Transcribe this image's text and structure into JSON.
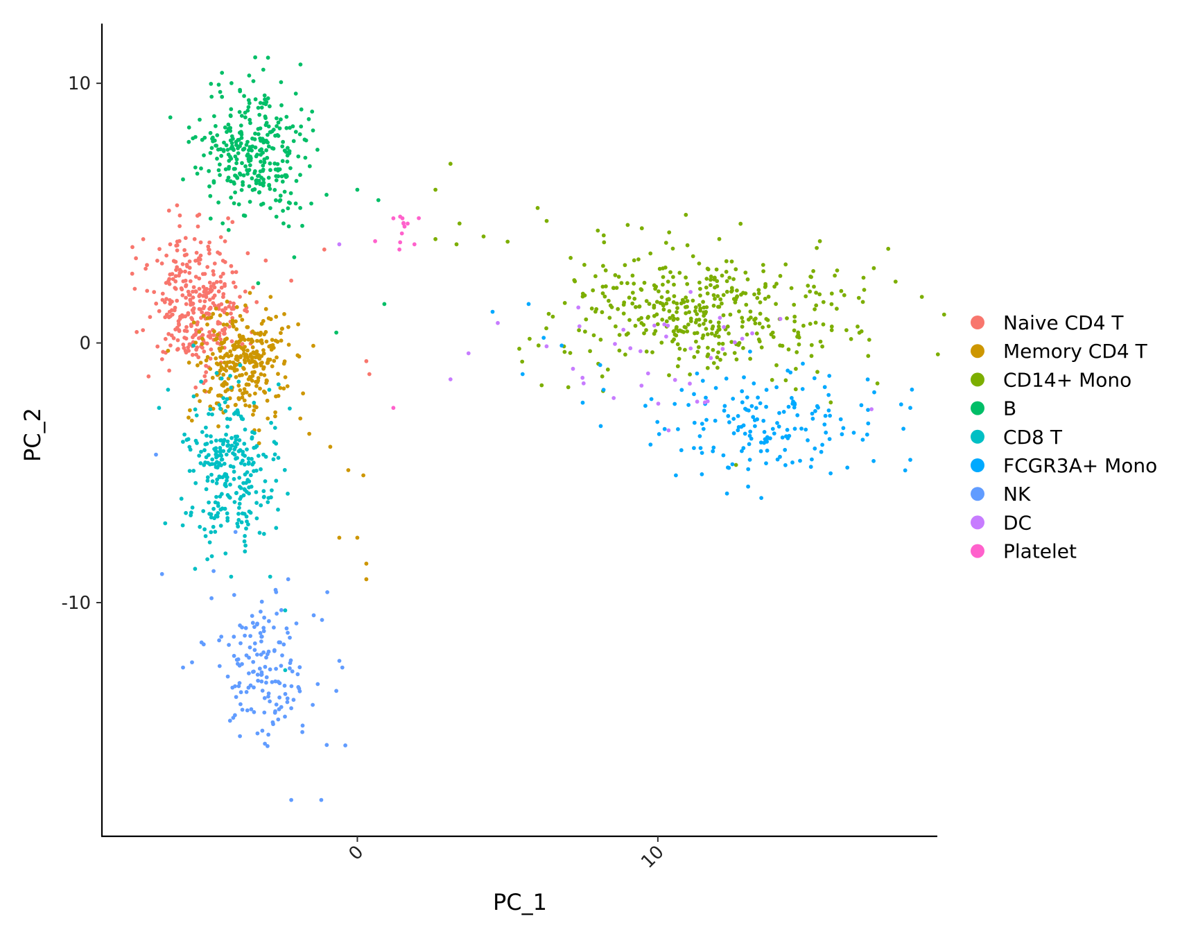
{
  "chart_data": {
    "type": "scatter",
    "title": "",
    "xlabel": "PC_1",
    "ylabel": "PC_2",
    "xlim": [
      -8.5,
      19.3
    ],
    "ylim": [
      -19,
      12.3
    ],
    "xticks": [
      {
        "value": 0,
        "label": "0"
      },
      {
        "value": 10,
        "label": "10"
      }
    ],
    "yticks": [
      {
        "value": 10,
        "label": "10"
      },
      {
        "value": 0,
        "label": "0"
      },
      {
        "value": -10,
        "label": "-10"
      }
    ],
    "grid": false,
    "legend_position": "right",
    "series": [
      {
        "name": "Naive CD4 T",
        "color": "#F8766D",
        "cluster": {
          "cx": -5.4,
          "cy": 1.5,
          "sx": 0.8,
          "sy": 1.3,
          "n": 330
        },
        "points": [
          [
            -6.0,
            5.3
          ],
          [
            -4.3,
            4.8
          ],
          [
            -7.0,
            3.0
          ],
          [
            -6.9,
            1.0
          ],
          [
            0.3,
            -0.7
          ],
          [
            0.4,
            -1.2
          ],
          [
            -2.2,
            2.4
          ],
          [
            -1.1,
            3.6
          ]
        ]
      },
      {
        "name": "Memory CD4 T",
        "color": "#CD9600",
        "cluster": {
          "cx": -3.8,
          "cy": -0.7,
          "sx": 0.8,
          "sy": 1.1,
          "n": 300
        },
        "points": [
          [
            -0.9,
            -4.0
          ],
          [
            -0.3,
            -4.9
          ],
          [
            0.2,
            -5.1
          ],
          [
            -0.6,
            -7.5
          ],
          [
            0.0,
            -7.5
          ],
          [
            0.3,
            -8.5
          ],
          [
            0.3,
            -9.1
          ],
          [
            -1.6,
            -3.5
          ],
          [
            -6.3,
            -0.3
          ]
        ]
      },
      {
        "name": "CD14+ Mono",
        "color": "#7CAE00",
        "cluster": {
          "cx": 11.5,
          "cy": 1.2,
          "sx": 2.5,
          "sy": 1.2,
          "n": 420
        },
        "points": [
          [
            2.6,
            5.9
          ],
          [
            3.1,
            6.9
          ],
          [
            3.4,
            4.6
          ],
          [
            2.6,
            4.0
          ],
          [
            3.3,
            3.8
          ],
          [
            6.0,
            5.2
          ],
          [
            6.3,
            4.7
          ],
          [
            5.0,
            3.9
          ],
          [
            4.2,
            4.1
          ],
          [
            12.6,
            -4.7
          ],
          [
            17.0,
            -0.5
          ]
        ]
      },
      {
        "name": "B",
        "color": "#00BE67",
        "cluster": {
          "cx": -3.4,
          "cy": 7.3,
          "sx": 0.9,
          "sy": 1.3,
          "n": 320
        },
        "points": [
          [
            -3.4,
            11.0
          ],
          [
            -3.6,
            10.3
          ],
          [
            -5.6,
            8.3
          ],
          [
            -5.8,
            6.3
          ],
          [
            0.0,
            5.9
          ],
          [
            0.7,
            5.5
          ],
          [
            0.9,
            1.5
          ],
          [
            -0.7,
            0.4
          ],
          [
            -2.1,
            3.3
          ],
          [
            -3.3,
            2.3
          ],
          [
            -1.9,
            5.2
          ]
        ]
      },
      {
        "name": "CD8 T",
        "color": "#00BFC4",
        "cluster": {
          "cx": -4.2,
          "cy": -5.0,
          "sx": 0.8,
          "sy": 1.5,
          "n": 280
        },
        "points": [
          [
            -6.6,
            -2.5
          ],
          [
            -6.3,
            -1.8
          ],
          [
            -2.4,
            -10.3
          ],
          [
            -2.4,
            -12.6
          ],
          [
            -4.2,
            -9.0
          ],
          [
            -5.4,
            -8.7
          ],
          [
            -2.9,
            -9.0
          ]
        ]
      },
      {
        "name": "FCGR3A+ Mono",
        "color": "#00A9FF",
        "cluster": {
          "cx": 13.5,
          "cy": -3.1,
          "sx": 2.0,
          "sy": 1.0,
          "n": 160
        },
        "points": [
          [
            4.5,
            1.2
          ],
          [
            5.7,
            1.5
          ],
          [
            5.5,
            -1.2
          ],
          [
            6.2,
            0.2
          ],
          [
            6.8,
            -0.1
          ],
          [
            7.5,
            -2.3
          ],
          [
            8.1,
            -3.2
          ],
          [
            10.6,
            -5.1
          ],
          [
            12.3,
            -5.8
          ],
          [
            18.4,
            -4.5
          ],
          [
            18.4,
            -2.5
          ],
          [
            17.0,
            -3.1
          ],
          [
            17.2,
            -1.9
          ]
        ]
      },
      {
        "name": "NK",
        "color": "#619CFF",
        "cluster": {
          "cx": -3.1,
          "cy": -12.5,
          "sx": 0.8,
          "sy": 1.5,
          "n": 150
        },
        "points": [
          [
            -6.7,
            -4.3
          ],
          [
            -6.5,
            -8.9
          ],
          [
            -5.5,
            -12.3
          ],
          [
            -5.8,
            -12.5
          ],
          [
            -2.2,
            -17.6
          ],
          [
            -1.2,
            -17.6
          ],
          [
            -0.4,
            -15.5
          ],
          [
            -0.5,
            -12.5
          ],
          [
            -1.0,
            -9.6
          ],
          [
            -2.3,
            -9.1
          ],
          [
            -0.7,
            -13.4
          ]
        ]
      },
      {
        "name": "DC",
        "color": "#C77CFF",
        "cluster": {
          "cx": 10.5,
          "cy": -0.5,
          "sx": 2.5,
          "sy": 1.3,
          "n": 36
        },
        "points": [
          [
            3.7,
            -0.4
          ],
          [
            3.1,
            -1.4
          ],
          [
            -0.6,
            3.8
          ]
        ]
      },
      {
        "name": "Platelet",
        "color": "#FF61CC",
        "cluster": {
          "cx": 1.4,
          "cy": 4.3,
          "sx": 0.4,
          "sy": 0.5,
          "n": 9
        },
        "points": [
          [
            1.2,
            4.8
          ],
          [
            1.5,
            4.8
          ],
          [
            1.2,
            -2.5
          ],
          [
            1.4,
            3.6
          ],
          [
            1.9,
            3.8
          ]
        ]
      }
    ]
  }
}
